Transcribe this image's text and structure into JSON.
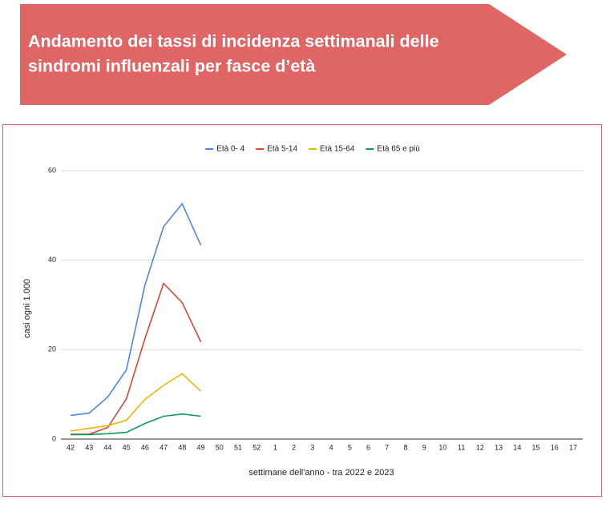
{
  "header": {
    "title_lines": [
      "Andamento dei tassi di incidenza settimanali delle",
      "sindromi influenzali per fasce d’età"
    ]
  },
  "chart_data": {
    "type": "line",
    "categories": [
      "42",
      "43",
      "44",
      "45",
      "46",
      "47",
      "48",
      "49",
      "50",
      "51",
      "52",
      "1",
      "2",
      "3",
      "4",
      "5",
      "6",
      "7",
      "8",
      "9",
      "10",
      "11",
      "12",
      "13",
      "14",
      "15",
      "16",
      "17"
    ],
    "series": [
      {
        "name": "Età 0- 4",
        "color": "#4a86e8",
        "values": [
          5.3,
          5.8,
          9.4,
          15.5,
          34.5,
          47.5,
          52.6,
          43.3,
          null,
          null,
          null,
          null,
          null,
          null,
          null,
          null,
          null,
          null,
          null,
          null,
          null,
          null,
          null,
          null,
          null,
          null,
          null,
          null
        ]
      },
      {
        "name": "Età 5-14",
        "color": "#db4437",
        "values": [
          1.1,
          1.1,
          2.6,
          9.0,
          22.5,
          34.8,
          30.5,
          21.7,
          null,
          null,
          null,
          null,
          null,
          null,
          null,
          null,
          null,
          null,
          null,
          null,
          null,
          null,
          null,
          null,
          null,
          null,
          null,
          null
        ]
      },
      {
        "name": "Età 15-64",
        "color": "#f4b400",
        "values": [
          1.8,
          2.4,
          3.0,
          4.2,
          8.9,
          12.0,
          14.6,
          10.7,
          null,
          null,
          null,
          null,
          null,
          null,
          null,
          null,
          null,
          null,
          null,
          null,
          null,
          null,
          null,
          null,
          null,
          null,
          null,
          null
        ]
      },
      {
        "name": "Età 65 e più",
        "color": "#0f9d58",
        "values": [
          1.0,
          1.0,
          1.2,
          1.5,
          3.5,
          5.1,
          5.6,
          5.1,
          null,
          null,
          null,
          null,
          null,
          null,
          null,
          null,
          null,
          null,
          null,
          null,
          null,
          null,
          null,
          null,
          null,
          null,
          null,
          null
        ]
      }
    ],
    "ylim": [
      0,
      60
    ],
    "yticks": [
      0,
      20,
      40,
      60
    ],
    "grid": true,
    "legend": "top",
    "y_label": "casi ogni 1.000",
    "x_label": "settimane dell'anno - tra 2022 e 2023"
  }
}
